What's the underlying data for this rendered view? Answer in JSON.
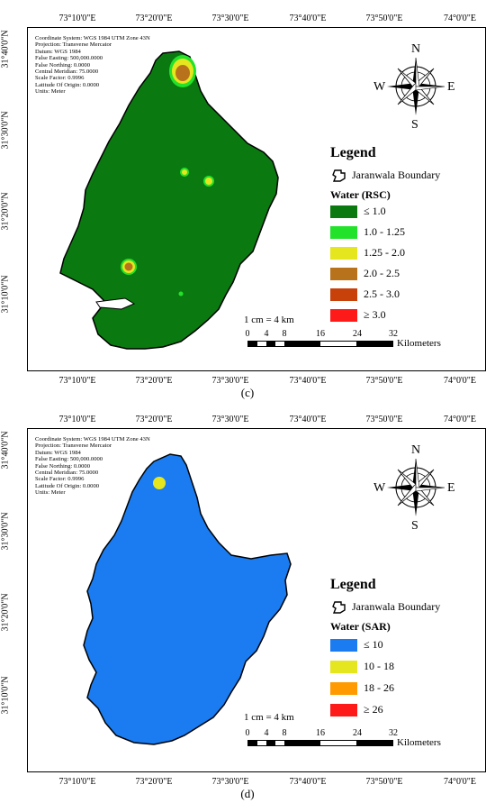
{
  "panels": [
    {
      "caption": "(c)",
      "top_lon": [
        "73°10'0\"E",
        "73°20'0\"E",
        "73°30'0\"E",
        "73°40'0\"E",
        "73°50'0\"E",
        "74°0'0\"E"
      ],
      "bottom_lon": [
        "73°10'0\"E",
        "73°20'0\"E",
        "73°30'0\"E",
        "73°40'0\"E",
        "73°50'0\"E",
        "74°0'0\"E"
      ],
      "lat": [
        "31°40'0\"N",
        "31°30'0\"N",
        "31°20'0\"N",
        "31°10'0\"N"
      ],
      "meta": [
        "Coordinate System: WGS 1984 UTM Zone 43N",
        "Projection: Transverse Mercator",
        "Datum: WGS 1984",
        "False Easting: 500,000.0000",
        "False Northing: 0.0000",
        "Central Meridian: 75.0000",
        "Scale Factor: 0.9996",
        "Latitude Of Origin: 0.0000",
        "Units: Meter"
      ],
      "compass": {
        "n": "N",
        "s": "S",
        "e": "E",
        "w": "W"
      },
      "legend": {
        "title": "Legend",
        "boundary": "Jaranwala Boundary",
        "subtitle": "Water (RSC)",
        "items": [
          {
            "label": "≤ 1.0",
            "color": "#0a7a10"
          },
          {
            "label": "1.0 - 1.25",
            "color": "#22e22a"
          },
          {
            "label": "1.25 - 2.0",
            "color": "#e6e61e"
          },
          {
            "label": "2.0 - 2.5",
            "color": "#b8721c"
          },
          {
            "label": "2.5 - 3.0",
            "color": "#c8400a"
          },
          {
            "label": "≥ 3.0",
            "color": "#ff1a1a"
          }
        ]
      },
      "scale": {
        "ratio": "1 cm = 4 km",
        "ticks": [
          "0",
          "4",
          "8",
          "16",
          "24",
          "32"
        ],
        "unit": "Kilometers"
      }
    },
    {
      "caption": "(d)",
      "top_lon": [
        "73°10'0\"E",
        "73°20'0\"E",
        "73°30'0\"E",
        "73°40'0\"E",
        "73°50'0\"E",
        "74°0'0\"E"
      ],
      "bottom_lon": [
        "73°10'0\"E",
        "73°20'0\"E",
        "73°30'0\"E",
        "73°40'0\"E",
        "73°50'0\"E",
        "74°0'0\"E"
      ],
      "lat": [
        "31°40'0\"N",
        "31°30'0\"N",
        "31°20'0\"N",
        "31°10'0\"N"
      ],
      "meta": [
        "Coordinate System: WGS 1984 UTM Zone 43N",
        "Projection: Transverse Mercator",
        "Datum: WGS 1984",
        "False Easting: 500,000.0000",
        "False Northing: 0.0000",
        "Central Meridian: 75.0000",
        "Scale Factor: 0.9996",
        "Latitude Of Origin: 0.0000",
        "Units: Meter"
      ],
      "compass": {
        "n": "N",
        "s": "S",
        "e": "E",
        "w": "W"
      },
      "legend": {
        "title": "Legend",
        "boundary": "Jaranwala Boundary",
        "subtitle": "Water (SAR)",
        "items": [
          {
            "label": "≤ 10",
            "color": "#1a7cf0"
          },
          {
            "label": "10 - 18",
            "color": "#e6e61e"
          },
          {
            "label": "18 - 26",
            "color": "#ff9a00"
          },
          {
            "label": "≥ 26",
            "color": "#ff1a1a"
          }
        ]
      },
      "scale": {
        "ratio": "1 cm = 4 km",
        "ticks": [
          "0",
          "4",
          "8",
          "16",
          "24",
          "32"
        ],
        "unit": "Kilometers"
      }
    }
  ]
}
